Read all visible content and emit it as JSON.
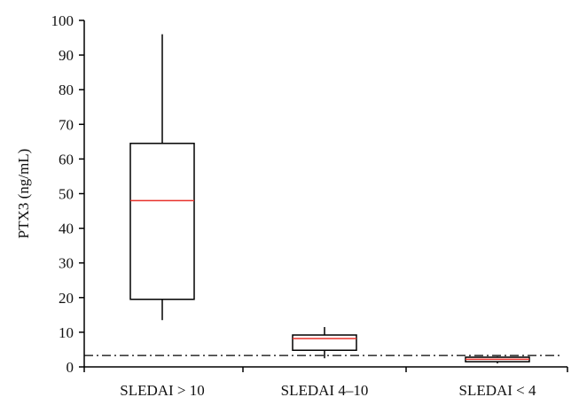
{
  "chart_data": {
    "type": "box",
    "title": "",
    "xlabel": "",
    "ylabel": "PTX3 (ng/mL)",
    "ylim": [
      0,
      100
    ],
    "yticks": [
      0,
      10,
      20,
      30,
      40,
      50,
      60,
      70,
      80,
      90,
      100
    ],
    "categories": [
      "SLEDAI > 10",
      "SLEDAI 4–10",
      "SLEDAI < 4"
    ],
    "boxes": [
      {
        "category": "SLEDAI > 10",
        "whisker_low": 13.5,
        "q1": 19.5,
        "median": 48,
        "q3": 64.5,
        "whisker_high": 96
      },
      {
        "category": "SLEDAI 4–10",
        "whisker_low": 2.5,
        "q1": 4.8,
        "median": 8.2,
        "q3": 9.2,
        "whisker_high": 11.5
      },
      {
        "category": "SLEDAI < 4",
        "whisker_low": 1.0,
        "q1": 1.5,
        "median": 2.2,
        "q3": 2.8,
        "whisker_high": 3.0
      }
    ],
    "reference_line": {
      "value": 3.3,
      "style": "dash-dot"
    },
    "grid": false,
    "colors": {
      "box": "#000000",
      "median": "#e8302a",
      "axis": "#000000"
    }
  }
}
